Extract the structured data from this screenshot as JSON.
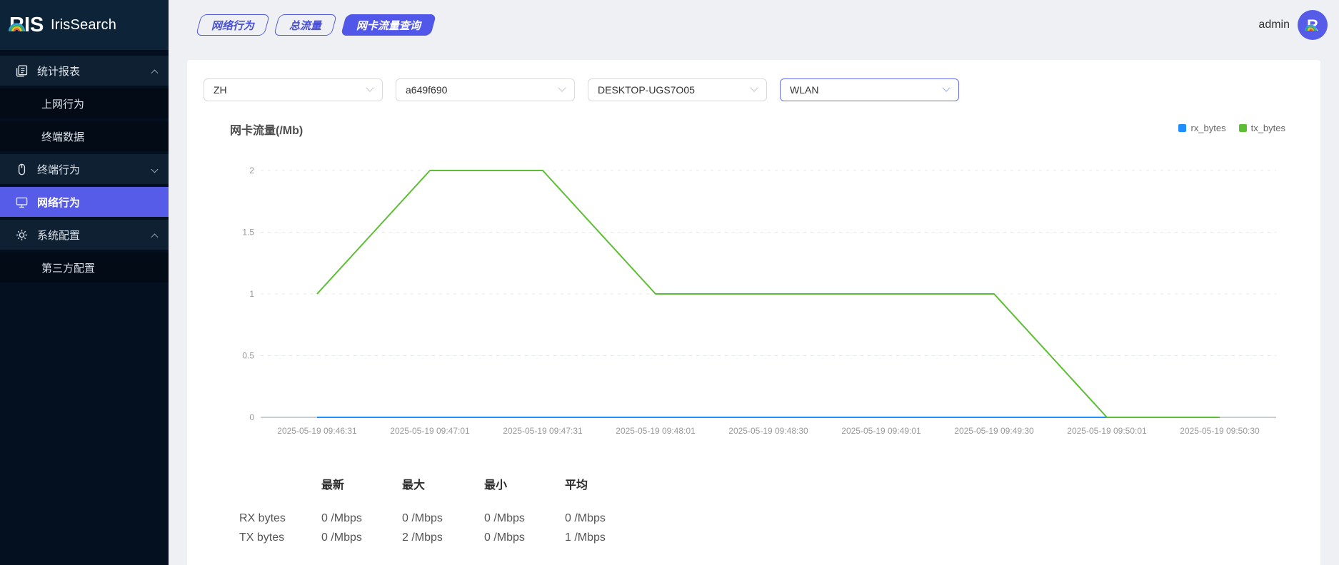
{
  "app": {
    "logo_text": "IrisSearch"
  },
  "header": {
    "user": "admin"
  },
  "sidebar": {
    "items": [
      {
        "id": "stats-report",
        "label": "统计报表",
        "icon": "report-icon",
        "state": "expanded",
        "children": [
          {
            "id": "internet-behavior",
            "label": "上网行为"
          },
          {
            "id": "terminal-data",
            "label": "终端数据"
          }
        ]
      },
      {
        "id": "terminal-behavior",
        "label": "终端行为",
        "icon": "mouse-icon",
        "state": "collapsed",
        "children": []
      },
      {
        "id": "network-behavior",
        "label": "网络行为",
        "icon": "monitor-icon",
        "state": "active",
        "children": []
      },
      {
        "id": "system-config",
        "label": "系统配置",
        "icon": "gear-icon",
        "state": "expanded",
        "children": [
          {
            "id": "third-party-config",
            "label": "第三方配置"
          }
        ]
      }
    ]
  },
  "tabs": [
    {
      "label": "网络行为",
      "active": false
    },
    {
      "label": "总流量",
      "active": false
    },
    {
      "label": "网卡流量查询",
      "active": true
    }
  ],
  "filters": [
    {
      "name": "language-select",
      "value": "ZH",
      "focused": false
    },
    {
      "name": "device-id-select",
      "value": "a649f690",
      "focused": false
    },
    {
      "name": "hostname-select",
      "value": "DESKTOP-UGS7O05",
      "focused": false
    },
    {
      "name": "interface-select",
      "value": "WLAN",
      "focused": true
    }
  ],
  "chart_data": {
    "type": "line",
    "title": "网卡流量(/Mb)",
    "categories": [
      "2025-05-19 09:46:31",
      "2025-05-19 09:47:01",
      "2025-05-19 09:47:31",
      "2025-05-19 09:48:01",
      "2025-05-19 09:48:30",
      "2025-05-19 09:49:01",
      "2025-05-19 09:49:30",
      "2025-05-19 09:50:01",
      "2025-05-19 09:50:30"
    ],
    "series": [
      {
        "name": "rx_bytes",
        "color": "#1f8fff",
        "values": [
          0,
          0,
          0,
          0,
          0,
          0,
          0,
          0,
          0
        ]
      },
      {
        "name": "tx_bytes",
        "color": "#5cbe32",
        "values": [
          1,
          2,
          2,
          1,
          1,
          1,
          1,
          0,
          0
        ]
      }
    ],
    "ylim": [
      0,
      2
    ],
    "yticks": [
      0,
      0.5,
      1,
      1.5,
      2
    ],
    "grid": "dashed-horizontal",
    "legend_position": "top-right",
    "axis_color": "#c9ccd3",
    "grid_color": "#e2e8ef",
    "tick_label_color": "#999999"
  },
  "summary": {
    "col_headers": [
      "最新",
      "最大",
      "最小",
      "平均"
    ],
    "rows": [
      {
        "label": "RX bytes",
        "values": [
          "0 /Mbps",
          "0 /Mbps",
          "0 /Mbps",
          "0 /Mbps"
        ]
      },
      {
        "label": "TX bytes",
        "values": [
          "0 /Mbps",
          "2 /Mbps",
          "0 /Mbps",
          "1 /Mbps"
        ]
      }
    ]
  },
  "colors": {
    "accent": "#5157e8",
    "sidebar_active": "#575ce8"
  }
}
